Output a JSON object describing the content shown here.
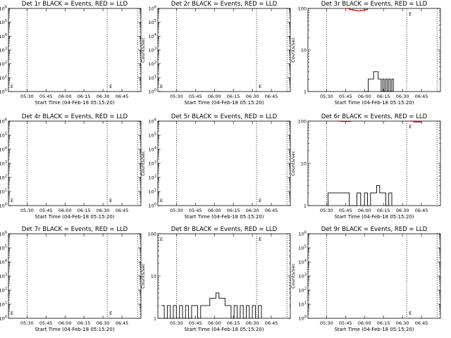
{
  "chart_data": [
    {
      "type": "line",
      "title": "Det 1r BLACK = Events, RED = LLD",
      "xlabel": "Start Time (04-Feb-18 05:15:20)",
      "ylabel": "Counts/sec",
      "xticks": [
        "05:30",
        "05:45",
        "06:00",
        "06:15",
        "06:30",
        "06:45"
      ],
      "xlim": [
        5.2556,
        7.0
      ],
      "yscale": "log",
      "ylim": [
        1,
        1000000
      ],
      "yticks": [
        "10^0",
        "10^1",
        "10^2",
        "10^3",
        "10^4",
        "10^5",
        "10^6"
      ],
      "markers": [
        5.5,
        6.5556,
        6.9556
      ],
      "marker_labels": [
        {
          "x": 5.2556,
          "text": "E"
        },
        {
          "x": 6.5556,
          "text": "E"
        }
      ],
      "series": []
    },
    {
      "type": "line",
      "title": "Det 2r BLACK = Events, RED = LLD",
      "xlabel": "Start Time (04-Feb-18 05:15:20)",
      "ylabel": "Counts/sec",
      "xticks": [
        "05:30",
        "05:45",
        "06:00",
        "06:15",
        "06:30",
        "06:45"
      ],
      "xlim": [
        5.2556,
        7.0
      ],
      "yscale": "log",
      "ylim": [
        1,
        1000000
      ],
      "yticks": [
        "10^0",
        "10^1",
        "10^2",
        "10^3",
        "10^4",
        "10^5",
        "10^6"
      ],
      "markers": [
        5.5,
        6.5556,
        6.9556
      ],
      "marker_labels": [
        {
          "x": 5.2556,
          "text": "E"
        },
        {
          "x": 6.5556,
          "text": "E"
        }
      ],
      "series": []
    },
    {
      "type": "line",
      "title": "Det 3r BLACK = Events, RED = LLD",
      "xlabel": "Start Time (04-Feb-18 05:15:20)",
      "ylabel": "Counts/sec",
      "xticks": [
        "05:30",
        "05:45",
        "06:00",
        "06:15",
        "06:30",
        "06:45"
      ],
      "xlim": [
        5.2556,
        7.0
      ],
      "yscale": "log",
      "ylim": [
        1,
        100
      ],
      "yticks": [
        "1",
        "10",
        "100"
      ],
      "markers": [
        5.5,
        6.5556,
        6.9556
      ],
      "marker_labels": [
        {
          "x": 6.5556,
          "text": "E"
        }
      ],
      "series": [
        {
          "color": "#000000",
          "x": [
            6.0,
            6.04,
            6.05,
            6.08,
            6.1,
            6.12,
            6.15,
            6.18,
            6.2,
            6.22,
            6.24,
            6.26,
            6.28,
            6.3,
            6.32,
            6.34,
            6.36,
            6.38
          ],
          "y": [
            1,
            1,
            2,
            2,
            2,
            3,
            3,
            2,
            2,
            1,
            2,
            1,
            2,
            1,
            2,
            1,
            2,
            1
          ]
        },
        {
          "color": "#cc0000",
          "x": [
            5.76,
            5.8,
            5.85,
            5.9,
            5.95,
            6.0,
            6.04
          ],
          "y": [
            100,
            94,
            90,
            88,
            90,
            94,
            100
          ]
        }
      ]
    },
    {
      "type": "line",
      "title": "Det 4r BLACK = Events, RED = LLD",
      "xlabel": "Start Time (04-Feb-18 05:15:20)",
      "ylabel": "Counts/sec",
      "xticks": [
        "05:30",
        "05:45",
        "06:00",
        "06:15",
        "06:30",
        "06:45"
      ],
      "xlim": [
        5.2556,
        7.0
      ],
      "yscale": "log",
      "ylim": [
        1,
        1000000
      ],
      "yticks": [
        "10^0",
        "10^1",
        "10^2",
        "10^3",
        "10^4",
        "10^5",
        "10^6"
      ],
      "markers": [
        5.5,
        6.5556,
        6.9556
      ],
      "marker_labels": [
        {
          "x": 5.2556,
          "text": "E"
        },
        {
          "x": 6.5556,
          "text": "E"
        }
      ],
      "series": []
    },
    {
      "type": "line",
      "title": "Det 5r BLACK = Events, RED = LLD",
      "xlabel": "Start Time (04-Feb-18 05:15:20)",
      "ylabel": "Counts/sec",
      "xticks": [
        "05:30",
        "05:45",
        "06:00",
        "06:15",
        "06:30",
        "06:45"
      ],
      "xlim": [
        5.2556,
        7.0
      ],
      "yscale": "log",
      "ylim": [
        1,
        1000000
      ],
      "yticks": [
        "10^0",
        "10^1",
        "10^2",
        "10^3",
        "10^4",
        "10^5",
        "10^6"
      ],
      "markers": [
        5.5,
        6.5556,
        6.9556
      ],
      "marker_labels": [
        {
          "x": 5.2556,
          "text": "E"
        },
        {
          "x": 6.5556,
          "text": "E"
        }
      ],
      "series": []
    },
    {
      "type": "line",
      "title": "Det 6r BLACK = Events, RED = LLD",
      "xlabel": "Start Time (04-Feb-18 05:15:20)",
      "ylabel": "Counts/sec",
      "xticks": [
        "05:30",
        "05:45",
        "06:00",
        "06:15",
        "06:30",
        "06:45"
      ],
      "xlim": [
        5.2556,
        7.0
      ],
      "yscale": "log",
      "ylim": [
        1,
        100
      ],
      "yticks": [
        "1",
        "10",
        "100"
      ],
      "markers": [
        5.5,
        6.5556,
        6.9556
      ],
      "marker_labels": [
        {
          "x": 6.5556,
          "text": "E"
        }
      ],
      "series": [
        {
          "color": "#000000",
          "x": [
            5.5,
            5.52,
            5.8,
            5.9,
            5.95,
            6.0,
            6.04,
            6.08,
            6.12,
            6.16,
            6.2,
            6.24,
            6.28,
            6.32,
            6.36
          ],
          "y": [
            1,
            2,
            1,
            2,
            1,
            2,
            1,
            2,
            2,
            3,
            2,
            2,
            1,
            2,
            1
          ]
        },
        {
          "color": "#cc0000",
          "x": [
            5.64,
            5.7,
            5.76,
            5.82
          ],
          "y": [
            100,
            98,
            98,
            100
          ]
        },
        {
          "color": "#cc0000",
          "x": [
            6.6,
            6.65,
            6.7,
            6.75
          ],
          "y": [
            100,
            96,
            96,
            100
          ]
        }
      ]
    },
    {
      "type": "line",
      "title": "Det 7r BLACK = Events, RED = LLD",
      "xlabel": "Start Time (04-Feb-18 05:15:20)",
      "ylabel": "Counts/sec",
      "xticks": [
        "05:30",
        "05:45",
        "06:00",
        "06:15",
        "06:30",
        "06:45"
      ],
      "xlim": [
        5.2556,
        7.0
      ],
      "yscale": "log",
      "ylim": [
        1,
        1000000
      ],
      "yticks": [
        "10^0",
        "10^1",
        "10^2",
        "10^3",
        "10^4",
        "10^5",
        "10^6"
      ],
      "markers": [
        5.5,
        6.5556,
        6.9556
      ],
      "marker_labels": [
        {
          "x": 5.2556,
          "text": "E"
        },
        {
          "x": 6.5556,
          "text": "E"
        }
      ],
      "series": []
    },
    {
      "type": "line",
      "title": "Det 8r BLACK = Events, RED = LLD",
      "xlabel": "Start Time (04-Feb-18 05:15:20)",
      "ylabel": "Counts/sec",
      "xticks": [
        "05:30",
        "05:45",
        "06:00",
        "06:15",
        "06:30",
        "06:45"
      ],
      "xlim": [
        5.2556,
        7.0
      ],
      "yscale": "log",
      "ylim": [
        1,
        100
      ],
      "yticks": [
        "1",
        "10",
        "100"
      ],
      "markers": [
        5.5,
        6.5556,
        6.9556
      ],
      "marker_labels": [
        {
          "x": 5.2556,
          "text": "E"
        },
        {
          "x": 6.5556,
          "text": "E"
        }
      ],
      "series": [
        {
          "color": "#000000",
          "x": [
            5.3,
            5.34,
            5.38,
            5.42,
            5.46,
            5.5,
            5.54,
            5.58,
            5.62,
            5.66,
            5.7,
            5.74,
            5.78,
            5.82,
            5.86,
            5.9,
            5.94,
            5.98,
            6.02,
            6.06,
            6.1,
            6.14,
            6.18,
            6.22,
            6.26,
            6.3,
            6.34,
            6.38,
            6.42,
            6.46,
            6.5,
            6.54,
            6.58,
            6.62
          ],
          "y": [
            2,
            1,
            2,
            1,
            2,
            1,
            2,
            1,
            2,
            1,
            2,
            2,
            1,
            2,
            2,
            2,
            3,
            3,
            4,
            3,
            3,
            2,
            2,
            1,
            2,
            1,
            2,
            1,
            2,
            1,
            2,
            1,
            2,
            1
          ]
        }
      ]
    },
    {
      "type": "line",
      "title": "Det 9r BLACK = Events, RED = LLD",
      "xlabel": "Start Time (04-Feb-18 05:15:20)",
      "ylabel": "Counts/sec",
      "xticks": [
        "05:30",
        "05:45",
        "06:00",
        "06:15",
        "06:30",
        "06:45"
      ],
      "xlim": [
        5.2556,
        7.0
      ],
      "yscale": "log",
      "ylim": [
        1,
        1000000
      ],
      "yticks": [
        "10^0",
        "10^1",
        "10^2",
        "10^3",
        "10^4",
        "10^5",
        "10^6"
      ],
      "markers": [
        5.5,
        6.5556,
        6.9556
      ],
      "marker_labels": [
        {
          "x": 6.5556,
          "text": "E"
        }
      ],
      "series": []
    }
  ]
}
